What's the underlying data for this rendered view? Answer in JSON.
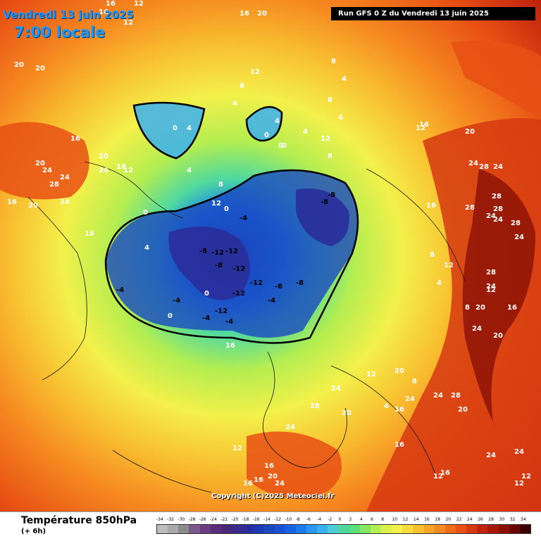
{
  "header": {
    "date": "Vendredi 13 juin 2025",
    "time": "7:00 locale",
    "run": "Run GFS 0 Z du Vendredi 13 juin 2025"
  },
  "copyright": "Copyright (C)2025 Meteociel.fr",
  "legend": {
    "title": "Température 850hPa",
    "subtitle": "(+ 6h)",
    "ticks": [
      "-34",
      "-32",
      "-30",
      "-28",
      "-26",
      "-24",
      "-22",
      "-20",
      "-18",
      "-16",
      "-14",
      "-12",
      "-10",
      "-8",
      "-6",
      "-4",
      "-2",
      "0",
      "2",
      "4",
      "6",
      "8",
      "10",
      "12",
      "14",
      "16",
      "18",
      "20",
      "22",
      "24",
      "26",
      "28",
      "30",
      "32",
      "34"
    ],
    "colors": [
      "#bdbdbd",
      "#a8a8a8",
      "#8c8c8c",
      "#7a5a8a",
      "#6b3c7d",
      "#5a2d7a",
      "#482678",
      "#3a2b8a",
      "#2a2e9a",
      "#1f3aac",
      "#1a48c0",
      "#1554d4",
      "#1464e8",
      "#1a7cf0",
      "#2b95f2",
      "#3bb0f0",
      "#4ccbd8",
      "#4ed8a0",
      "#5ce07a",
      "#86e860",
      "#b4ee50",
      "#dcf24a",
      "#f4f04a",
      "#f8dc3c",
      "#f8c030",
      "#f8a428",
      "#f68a20",
      "#f26c18",
      "#e85014",
      "#d63810",
      "#c0240c",
      "#a81808",
      "#8a1006",
      "#6a0804",
      "#3c0000"
    ]
  },
  "map_labels": [
    {
      "t": "16"
    },
    {
      "t": "16"
    },
    {
      "t": "12"
    },
    {
      "t": "12"
    },
    {
      "t": "16"
    },
    {
      "t": "20"
    },
    {
      "t": "20"
    },
    {
      "t": "20"
    },
    {
      "t": "16"
    },
    {
      "t": "20"
    },
    {
      "t": "24"
    },
    {
      "t": "24"
    },
    {
      "t": "28"
    },
    {
      "t": "20"
    },
    {
      "t": "24"
    },
    {
      "t": "16"
    },
    {
      "t": "20"
    },
    {
      "t": "16"
    },
    {
      "t": "24"
    },
    {
      "t": "12"
    },
    {
      "t": "16"
    },
    {
      "t": "0"
    },
    {
      "t": "4"
    },
    {
      "t": "8"
    },
    {
      "t": "4"
    },
    {
      "t": "12"
    },
    {
      "t": "4"
    },
    {
      "t": "8"
    },
    {
      "t": "0"
    },
    {
      "t": "4"
    },
    {
      "t": "0"
    },
    {
      "t": "0"
    },
    {
      "t": "8"
    },
    {
      "t": "4"
    },
    {
      "t": "8"
    },
    {
      "t": "12"
    },
    {
      "t": "4"
    },
    {
      "t": "-8"
    },
    {
      "t": "-8"
    },
    {
      "t": "-4"
    },
    {
      "t": "0"
    },
    {
      "t": "-8"
    },
    {
      "t": "-12"
    },
    {
      "t": "-12"
    },
    {
      "t": "-8"
    },
    {
      "t": "-12"
    },
    {
      "t": "-12"
    },
    {
      "t": "-12"
    },
    {
      "t": "-12"
    },
    {
      "t": "-8"
    },
    {
      "t": "-8"
    },
    {
      "t": "-4"
    },
    {
      "t": "-4"
    },
    {
      "t": "-4"
    },
    {
      "t": "-4"
    },
    {
      "t": "0"
    },
    {
      "t": "0"
    },
    {
      "t": "-4"
    },
    {
      "t": "4"
    },
    {
      "t": "0"
    },
    {
      "t": "4"
    },
    {
      "t": "8"
    },
    {
      "t": "12"
    },
    {
      "t": "16"
    },
    {
      "t": "12"
    },
    {
      "t": "16"
    },
    {
      "t": "20"
    },
    {
      "t": "24"
    },
    {
      "t": "28"
    },
    {
      "t": "24"
    },
    {
      "t": "28"
    },
    {
      "t": "28"
    },
    {
      "t": "24"
    },
    {
      "t": "24"
    },
    {
      "t": "28"
    },
    {
      "t": "20"
    },
    {
      "t": "24"
    },
    {
      "t": "16"
    },
    {
      "t": "12"
    },
    {
      "t": "8"
    },
    {
      "t": "4"
    },
    {
      "t": "8"
    },
    {
      "t": "12"
    },
    {
      "t": "16"
    },
    {
      "t": "20"
    },
    {
      "t": "24"
    },
    {
      "t": "24"
    },
    {
      "t": "28"
    },
    {
      "t": "28"
    },
    {
      "t": "24"
    },
    {
      "t": "28"
    },
    {
      "t": "20"
    },
    {
      "t": "24"
    },
    {
      "t": "24"
    },
    {
      "t": "16"
    },
    {
      "t": "12"
    },
    {
      "t": "12"
    },
    {
      "t": "12"
    },
    {
      "t": "16"
    },
    {
      "t": "20"
    },
    {
      "t": "24"
    },
    {
      "t": "16"
    },
    {
      "t": "12"
    },
    {
      "t": "8"
    },
    {
      "t": "4"
    },
    {
      "t": "20"
    },
    {
      "t": "24"
    },
    {
      "t": "28"
    },
    {
      "t": "24"
    },
    {
      "t": "24"
    },
    {
      "t": "20"
    },
    {
      "t": "16"
    },
    {
      "t": "16"
    },
    {
      "t": "16"
    },
    {
      "t": "12"
    }
  ]
}
